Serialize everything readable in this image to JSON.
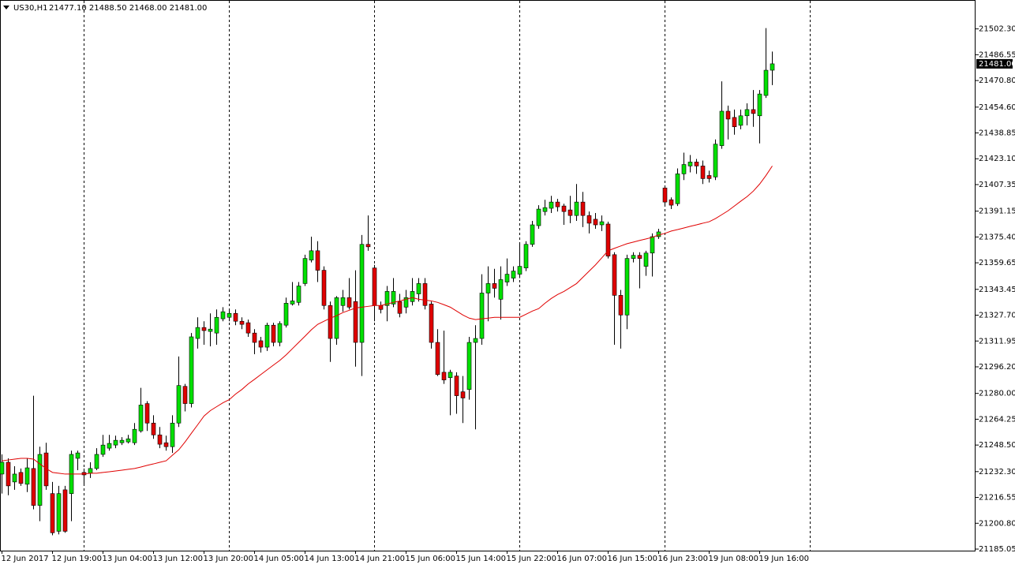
{
  "chart_data": {
    "type": "candlestick",
    "title": "US30,H1",
    "ohlc_text": "21477.10 21488.50 21468.00 21481.00",
    "categories": [
      "12 Jun 2017",
      null,
      null,
      null,
      null,
      null,
      null,
      null,
      "12 Jun 19:00",
      null,
      null,
      null,
      null,
      null,
      null,
      null,
      "13 Jun 04:00",
      null,
      null,
      null,
      null,
      null,
      null,
      null,
      "13 Jun 12:00",
      null,
      null,
      null,
      null,
      null,
      null,
      null,
      "13 Jun 20:00",
      null,
      null,
      null,
      null,
      null,
      null,
      null,
      "14 Jun 05:00",
      null,
      null,
      null,
      null,
      null,
      null,
      null,
      "14 Jun 13:00",
      null,
      null,
      null,
      null,
      null,
      null,
      null,
      "14 Jun 21:00",
      null,
      null,
      null,
      null,
      null,
      null,
      null,
      "15 Jun 06:00",
      null,
      null,
      null,
      null,
      null,
      null,
      null,
      "15 Jun 14:00",
      null,
      null,
      null,
      null,
      null,
      null,
      null,
      "15 Jun 22:00",
      null,
      null,
      null,
      null,
      null,
      null,
      null,
      "16 Jun 07:00",
      null,
      null,
      null,
      null,
      null,
      null,
      null,
      "16 Jun 15:00",
      null,
      null,
      null,
      null,
      null,
      null,
      null,
      "16 Jun 23:00",
      null,
      null,
      null,
      null,
      null,
      null,
      null,
      "19 Jun 08:00",
      null,
      null,
      null,
      null,
      null,
      null,
      null,
      "19 Jun 16:00",
      null,
      null
    ],
    "up_color": "#00e000",
    "down_color": "#e00000",
    "open": [
      21230.8,
      21238.0,
      21226.0,
      21231.8,
      21224.6,
      21234.2,
      21211.7,
      21243.7,
      21218.9,
      21195.9,
      21221.2,
      21218.9,
      21240.4,
      21231.8,
      21231.3,
      21234.2,
      21242.8,
      21246.6,
      21248.5,
      21249.9,
      21250.4,
      21249.9,
      21257.1,
      21273.8,
      21261.9,
      21254.7,
      21249.9,
      21247.5,
      21261.9,
      21284.3,
      21273.8,
      21313.5,
      21320.2,
      21317.8,
      21316.8,
      21325.5,
      21326.4,
      21328.8,
      21324.0,
      21323.1,
      21316.8,
      21312.1,
      21308.2,
      21321.6,
      21311.1,
      21321.6,
      21334.5,
      21335.5,
      21347.0,
      21361.3,
      21367.0,
      21355.1,
      21333.6,
      21313.5,
      21333.6,
      21338.4,
      21336.0,
      21311.1,
      21370.9,
      21356.5,
      21333.6,
      21333.6,
      21334.5,
      21336.0,
      21332.6,
      21336.0,
      21340.7,
      21347.0,
      21334.5,
      21311.1,
      21292.9,
      21289.6,
      21290.6,
      21281.0,
      21282.4,
      21311.1,
      21313.5,
      21341.2,
      21347.0,
      21337.4,
      21347.9,
      21350.3,
      21352.7,
      21356.5,
      21370.9,
      21382.3,
      21390.9,
      21392.9,
      21396.7,
      21394.3,
      21391.9,
      21388.5,
      21396.7,
      21388.5,
      21386.2,
      21382.8,
      21383.3,
      21364.6,
      21339.8,
      21327.8,
      21362.3,
      21364.2,
      21357.5,
      21365.6,
      21375.6,
      21405.3,
      21398.1,
      21395.7,
      21413.9,
      21418.7,
      21421.1,
      21418.7,
      21412.9,
      21412.0,
      21431.1,
      21452.1,
      21448.3,
      21443.5,
      21449.3,
      21453.1,
      21449.3,
      21461.7,
      21477.1
    ],
    "high": [
      21242.8,
      21240.4,
      21235.6,
      21234.2,
      21240.4,
      21278.6,
      21247.5,
      21249.9,
      21226.0,
      21223.6,
      21223.6,
      21245.1,
      21245.1,
      21234.2,
      21238.0,
      21246.6,
      21254.7,
      21254.7,
      21254.2,
      21253.3,
      21254.7,
      21261.9,
      21283.4,
      21275.3,
      21266.7,
      21259.5,
      21254.2,
      21266.7,
      21302.5,
      21285.8,
      21316.8,
      21326.4,
      21324.0,
      21328.8,
      21331.2,
      21332.6,
      21331.2,
      21331.2,
      21326.4,
      21325.0,
      21319.2,
      21314.5,
      21323.1,
      21323.1,
      21324.0,
      21338.4,
      21347.9,
      21347.9,
      21364.6,
      21375.6,
      21372.8,
      21357.5,
      21336.0,
      21339.3,
      21343.1,
      21350.3,
      21355.1,
      21376.6,
      21388.5,
      21358.4,
      21336.0,
      21345.5,
      21350.3,
      21340.7,
      21343.1,
      21350.3,
      21350.3,
      21350.3,
      21336.0,
      21319.2,
      21318.3,
      21294.4,
      21292.9,
      21290.6,
      21314.5,
      21321.6,
      21352.7,
      21357.5,
      21356.0,
      21357.5,
      21362.3,
      21357.5,
      21371.8,
      21372.8,
      21385.2,
      21394.8,
      21398.1,
      21400.5,
      21398.6,
      21395.7,
      21400.5,
      21407.7,
      21402.9,
      21390.9,
      21390.0,
      21388.5,
      21384.7,
      21366.1,
      21343.1,
      21364.6,
      21366.1,
      21366.1,
      21367.0,
      21377.6,
      21380.4,
      21406.2,
      21399.5,
      21417.2,
      21426.8,
      21425.4,
      21423.0,
      21422.0,
      21415.8,
      21434.9,
      21470.3,
      21455.5,
      21453.1,
      21453.1,
      21456.9,
      21465.0,
      21465.0,
      21502.8,
      21488.5
    ],
    "low": [
      21218.9,
      21217.9,
      21221.2,
      21223.6,
      21219.8,
      21209.3,
      21202.1,
      21221.2,
      21193.5,
      21194.0,
      21195.0,
      21202.1,
      21233.2,
      21223.6,
      21228.4,
      21233.2,
      21241.3,
      21245.1,
      21246.6,
      21248.5,
      21249.5,
      21248.5,
      21256.1,
      21257.1,
      21252.3,
      21246.6,
      21245.1,
      21243.7,
      21259.5,
      21269.0,
      21271.4,
      21307.3,
      21309.7,
      21308.7,
      21309.7,
      21324.0,
      21324.0,
      21321.6,
      21319.2,
      21314.5,
      21303.9,
      21304.9,
      21305.9,
      21308.7,
      21308.7,
      21320.2,
      21333.6,
      21333.6,
      21345.5,
      21359.9,
      21347.9,
      21331.2,
      21299.2,
      21309.7,
      21329.8,
      21331.2,
      21296.3,
      21290.6,
      21367.0,
      21324.0,
      21328.8,
      21324.0,
      21332.6,
      21326.4,
      21328.8,
      21333.6,
      21336.0,
      21331.2,
      21307.3,
      21290.6,
      21285.8,
      21266.7,
      21267.6,
      21261.9,
      21276.2,
      21258.1,
      21309.7,
      21324.0,
      21338.4,
      21325.0,
      21345.5,
      21347.9,
      21350.3,
      21354.6,
      21369.4,
      21380.4,
      21388.5,
      21390.0,
      21390.9,
      21382.8,
      21383.8,
      21385.2,
      21381.4,
      21377.6,
      21380.4,
      21379.0,
      21362.3,
      21309.7,
      21307.3,
      21319.2,
      21359.9,
      21344.1,
      21351.7,
      21351.3,
      21374.2,
      21394.8,
      21392.4,
      21394.3,
      21410.1,
      21414.8,
      21413.9,
      21407.7,
      21408.6,
      21410.1,
      21429.2,
      21434.9,
      21437.8,
      21441.1,
      21443.5,
      21442.6,
      21432.5,
      21460.2,
      21468.0
    ],
    "close": [
      21238.0,
      21223.6,
      21230.8,
      21225.1,
      21234.6,
      21211.7,
      21242.8,
      21223.6,
      21195.0,
      21218.9,
      21195.9,
      21242.8,
      21243.7,
      21230.3,
      21234.2,
      21242.8,
      21248.5,
      21249.5,
      21251.4,
      21251.4,
      21252.3,
      21258.1,
      21272.9,
      21261.9,
      21254.7,
      21249.0,
      21247.5,
      21261.9,
      21284.8,
      21273.8,
      21314.5,
      21320.2,
      21318.3,
      21319.2,
      21326.4,
      21329.8,
      21328.8,
      21324.0,
      21322.1,
      21316.8,
      21311.1,
      21308.2,
      21321.6,
      21311.1,
      21322.6,
      21335.0,
      21336.4,
      21345.5,
      21362.3,
      21367.0,
      21355.1,
      21333.6,
      21313.5,
      21338.4,
      21338.4,
      21332.6,
      21311.1,
      21370.9,
      21369.4,
      21333.6,
      21331.2,
      21342.2,
      21342.2,
      21328.8,
      21338.4,
      21342.2,
      21347.0,
      21333.6,
      21311.1,
      21291.5,
      21288.2,
      21292.9,
      21278.6,
      21277.2,
      21311.1,
      21313.5,
      21341.2,
      21347.0,
      21344.1,
      21349.4,
      21352.7,
      21354.6,
      21357.5,
      21370.9,
      21382.8,
      21392.4,
      21393.3,
      21396.7,
      21393.8,
      21390.9,
      21388.5,
      21396.7,
      21388.5,
      21383.8,
      21382.8,
      21384.7,
      21363.7,
      21339.8,
      21327.8,
      21362.3,
      21364.2,
      21362.3,
      21365.6,
      21375.6,
      21378.5,
      21396.7,
      21394.8,
      21413.9,
      21419.6,
      21421.1,
      21418.7,
      21411.0,
      21411.0,
      21432.0,
      21452.1,
      21447.3,
      21442.6,
      21449.3,
      21453.1,
      21450.7,
      21462.6,
      21477.1,
      21481.0
    ],
    "moving_average": {
      "color": "#e00000",
      "values": [
        21238.9,
        21239.4,
        21239.9,
        21240.4,
        21240.4,
        21239.9,
        21237.0,
        21234.2,
        21231.8,
        21231.3,
        21230.8,
        21230.8,
        21230.8,
        21230.8,
        21231.3,
        21231.3,
        21231.8,
        21232.2,
        21232.7,
        21233.2,
        21233.7,
        21234.2,
        21235.1,
        21236.1,
        21237.0,
        21238.0,
        21238.9,
        21242.3,
        21245.6,
        21250.4,
        21255.7,
        21260.9,
        21266.2,
        21269.5,
        21271.9,
        21274.3,
        21276.2,
        21279.6,
        21282.4,
        21285.8,
        21288.6,
        21291.5,
        21294.4,
        21297.3,
        21300.1,
        21303.5,
        21307.3,
        21311.1,
        21314.9,
        21318.8,
        21322.1,
        21324.0,
        21325.9,
        21327.4,
        21329.3,
        21330.7,
        21332.1,
        21332.6,
        21333.1,
        21333.6,
        21333.6,
        21334.5,
        21335.5,
        21336.4,
        21337.4,
        21338.4,
        21337.4,
        21336.9,
        21336.4,
        21335.5,
        21334.1,
        21332.6,
        21330.2,
        21327.8,
        21325.9,
        21325.0,
        21325.5,
        21325.9,
        21326.4,
        21326.4,
        21326.4,
        21326.4,
        21326.4,
        21328.3,
        21330.2,
        21331.7,
        21335.0,
        21337.9,
        21340.3,
        21342.2,
        21344.6,
        21347.0,
        21350.8,
        21354.6,
        21358.4,
        21362.7,
        21367.0,
        21368.5,
        21369.9,
        21371.3,
        21372.3,
        21373.3,
        21374.2,
        21375.2,
        21376.6,
        21377.6,
        21379.0,
        21379.9,
        21380.9,
        21381.9,
        21382.8,
        21383.8,
        21384.7,
        21386.6,
        21389.0,
        21391.4,
        21394.3,
        21397.2,
        21400.0,
        21403.4,
        21407.7,
        21412.9,
        21418.7
      ]
    },
    "price_label": {
      "value": 21481.0,
      "label": "21481.00"
    },
    "ylim": [
      21184.1,
      21518.0
    ],
    "yticks": [
      {
        "value": 21502.3,
        "label": "21502.30"
      },
      {
        "value": 21486.55,
        "label": "21486.55"
      },
      {
        "value": 21470.8,
        "label": "21470.80"
      },
      {
        "value": 21454.6,
        "label": "21454.60"
      },
      {
        "value": 21438.85,
        "label": "21438.85"
      },
      {
        "value": 21423.1,
        "label": "21423.10"
      },
      {
        "value": 21407.35,
        "label": "21407.35"
      },
      {
        "value": 21391.15,
        "label": "21391.15"
      },
      {
        "value": 21375.4,
        "label": "21375.40"
      },
      {
        "value": 21359.65,
        "label": "21359.65"
      },
      {
        "value": 21343.45,
        "label": "21343.45"
      },
      {
        "value": 21327.7,
        "label": "21327.70"
      },
      {
        "value": 21311.95,
        "label": "21311.95"
      },
      {
        "value": 21296.2,
        "label": "21296.20"
      },
      {
        "value": 21280.0,
        "label": "21280.00"
      },
      {
        "value": 21264.25,
        "label": "21264.25"
      },
      {
        "value": 21248.5,
        "label": "21248.50"
      },
      {
        "value": 21232.3,
        "label": "21232.30"
      },
      {
        "value": 21216.55,
        "label": "21216.55"
      },
      {
        "value": 21200.8,
        "label": "21200.80"
      },
      {
        "value": 21185.05,
        "label": "21185.05"
      }
    ],
    "grid": false
  }
}
